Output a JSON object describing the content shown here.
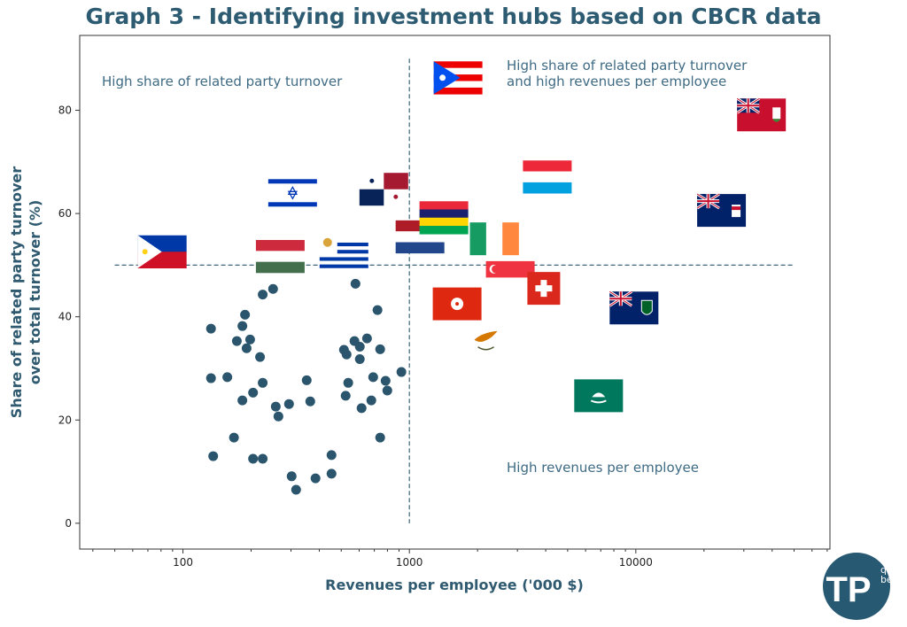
{
  "chart_data": {
    "type": "scatter",
    "title": "Graph 3 - Identifying investment hubs based on CBCR data",
    "xlabel": "Revenues per employee ('000 $)",
    "ylabel_line1": "Share of related party turnover",
    "ylabel_line2": "over total turnover (%)",
    "x_scale": "log",
    "xlim": [
      35,
      72000
    ],
    "ylim": [
      -5,
      94.5
    ],
    "x_ticks": [
      "100",
      "1000",
      "10000"
    ],
    "y_ticks": [
      "0",
      "20",
      "40",
      "60",
      "80"
    ],
    "grid": false,
    "reference_lines": {
      "x": 1000,
      "y": 50
    },
    "annotations": {
      "top_left": "High share of related party turnover",
      "top_right_line1": "High share of related party turnover",
      "top_right_line2": "and high revenues per employee",
      "bottom_right": "High revenues per employee"
    },
    "marker_color": "#2a556c",
    "reference_line_color": "#3d6478",
    "points": [
      [
        578,
        46.4
      ],
      [
        250,
        45.4
      ],
      [
        225,
        44.3
      ],
      [
        723,
        41.3
      ],
      [
        188,
        40.4
      ],
      [
        133,
        37.7
      ],
      [
        183,
        38.2
      ],
      [
        173,
        35.3
      ],
      [
        198,
        35.6
      ],
      [
        191,
        33.9
      ],
      [
        219,
        32.2
      ],
      [
        572,
        35.3
      ],
      [
        650,
        35.8
      ],
      [
        604,
        34.2
      ],
      [
        514,
        33.6
      ],
      [
        528,
        32.7
      ],
      [
        743,
        33.7
      ],
      [
        604,
        31.8
      ],
      [
        133,
        28.1
      ],
      [
        157,
        28.3
      ],
      [
        225,
        27.2
      ],
      [
        204,
        25.3
      ],
      [
        183,
        23.8
      ],
      [
        257,
        22.6
      ],
      [
        264,
        20.7
      ],
      [
        294,
        23.1
      ],
      [
        352,
        27.7
      ],
      [
        365,
        23.6
      ],
      [
        537,
        27.2
      ],
      [
        523,
        24.7
      ],
      [
        692,
        28.3
      ],
      [
        785,
        27.6
      ],
      [
        799,
        25.7
      ],
      [
        679,
        23.8
      ],
      [
        615,
        22.3
      ],
      [
        922,
        29.3
      ],
      [
        168,
        16.6
      ],
      [
        743,
        16.6
      ],
      [
        136,
        13.0
      ],
      [
        204,
        12.5
      ],
      [
        225,
        12.5
      ],
      [
        453,
        13.2
      ],
      [
        302,
        9.1
      ],
      [
        385,
        8.7
      ],
      [
        453,
        9.6
      ],
      [
        316,
        6.5
      ]
    ],
    "flags": [
      {
        "country": "philippines",
        "icon": "flag-philippines-icon",
        "x": 81,
        "y": 52.6
      },
      {
        "country": "hungary",
        "icon": "flag-hungary-icon",
        "x": 269,
        "y": 51.7
      },
      {
        "country": "israel",
        "icon": "flag-israel-icon",
        "x": 305,
        "y": 64.0
      },
      {
        "country": "uruguay",
        "icon": "flag-uruguay-icon",
        "x": 514,
        "y": 52.6
      },
      {
        "country": "panama",
        "icon": "flag-panama-icon",
        "x": 771,
        "y": 64.7
      },
      {
        "country": "netherlands",
        "icon": "flag-netherlands-icon",
        "x": 1114,
        "y": 55.5
      },
      {
        "country": "mauritius",
        "icon": "flag-mauritius-icon",
        "x": 1420,
        "y": 59.2
      },
      {
        "country": "puerto-rico",
        "icon": "flag-puerto-rico-icon",
        "x": 1640,
        "y": 86.3
      },
      {
        "country": "ireland",
        "icon": "flag-ireland-icon",
        "x": 2371,
        "y": 55.1
      },
      {
        "country": "luxembourg",
        "icon": "flag-luxembourg-icon",
        "x": 4066,
        "y": 67.1
      },
      {
        "country": "bermuda",
        "icon": "flag-bermuda-icon",
        "x": 35890,
        "y": 79.1
      },
      {
        "country": "cayman-islands",
        "icon": "flag-cayman-islands-icon",
        "x": 23900,
        "y": 60.6
      },
      {
        "country": "hong-kong",
        "icon": "flag-hong-kong-icon",
        "x": 1625,
        "y": 42.5
      },
      {
        "country": "singapore",
        "icon": "flag-singapore-icon",
        "x": 2790,
        "y": 47.6
      },
      {
        "country": "switzerland",
        "icon": "flag-switzerland-icon",
        "x": 3922,
        "y": 45.5
      },
      {
        "country": "british-virgin-islands",
        "icon": "flag-british-virgin-islands-icon",
        "x": 9820,
        "y": 41.7
      },
      {
        "country": "cyprus",
        "icon": "flag-cyprus-icon",
        "x": 2187,
        "y": 35.1
      },
      {
        "country": "macao",
        "icon": "flag-macao-icon",
        "x": 6850,
        "y": 24.7
      }
    ]
  },
  "logo": {
    "text": "TP",
    "superscript_1": "qu",
    "superscript_2": "be",
    "color": "#275a72"
  }
}
